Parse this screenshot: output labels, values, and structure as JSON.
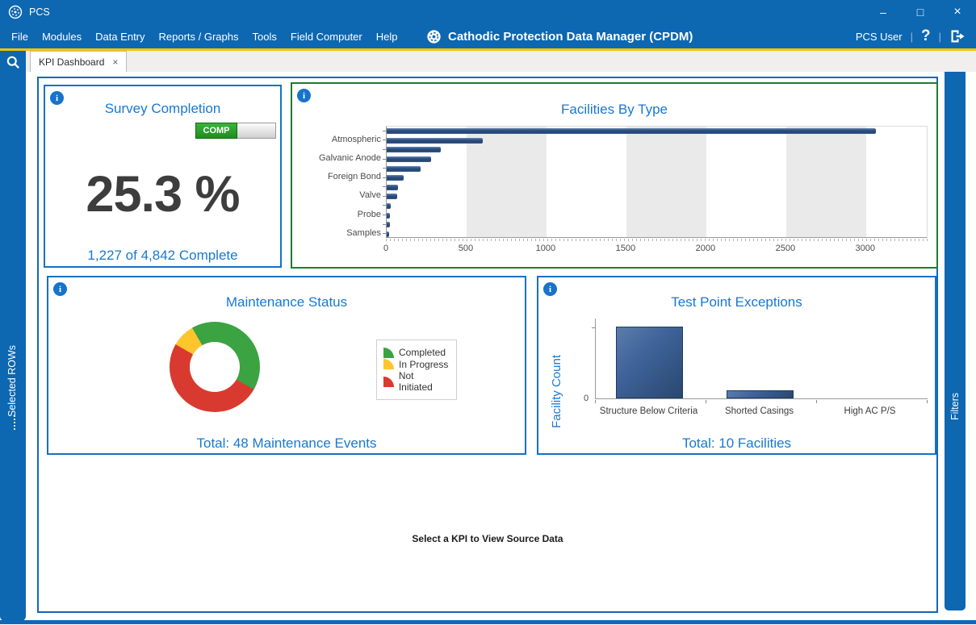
{
  "window": {
    "title": "PCS",
    "controls": [
      "–",
      "□",
      "×"
    ]
  },
  "menu_bar": {
    "items": [
      "File",
      "Modules",
      "Data Entry",
      "Reports / Graphs",
      "Tools",
      "Field Computer",
      "Help"
    ],
    "app_title": "Cathodic Protection Data Manager (CPDM)",
    "user": "PCS User",
    "help_label": "?"
  },
  "tabs": [
    {
      "label": "KPI Dashboard",
      "close_glyph": "×",
      "active": true
    }
  ],
  "left_sidebar": {
    "label": "Selected ROWs"
  },
  "right_sidebar": {
    "label": "Filters"
  },
  "kpi_survey": {
    "title": "Survey Completion",
    "badge_label": "COMP",
    "badge_fill_pct": 52,
    "value": "25.3 %",
    "subtitle": "1,227 of 4,842 Complete"
  },
  "kpi_facilities": {
    "title": "Facilities By Type",
    "chart_data": {
      "type": "bar",
      "orientation": "horizontal",
      "bars": [
        {
          "label": "",
          "value": 3060
        },
        {
          "label": "Atmospheric",
          "value": 600
        },
        {
          "label": "",
          "value": 340
        },
        {
          "label": "Galvanic Anode",
          "value": 280
        },
        {
          "label": "",
          "value": 210
        },
        {
          "label": "Foreign Bond",
          "value": 105
        },
        {
          "label": "",
          "value": 70
        },
        {
          "label": "Valve",
          "value": 68
        },
        {
          "label": "",
          "value": 25
        },
        {
          "label": "Probe",
          "value": 20
        },
        {
          "label": "",
          "value": 20
        },
        {
          "label": "Samples",
          "value": 15
        }
      ],
      "xticks": [
        0,
        500,
        1000,
        1500,
        2000,
        2500,
        3000
      ],
      "xlim": [
        0,
        3390
      ],
      "grid_bands": true,
      "legend": "none"
    }
  },
  "kpi_maintenance": {
    "title": "Maintenance Status",
    "total_label": "Total: 48 Maintenance Events",
    "legend": [
      {
        "label": "Completed",
        "color": "#3ba342"
      },
      {
        "label": "In Progress",
        "color": "#fec52d"
      },
      {
        "label": "Not Initiated",
        "color": "#d93a30"
      }
    ],
    "chart_data": {
      "type": "pie",
      "subtype": "donut",
      "total": 48,
      "start_angle_deg": -30,
      "slices": [
        {
          "label": "Completed",
          "value": 20,
          "color": "#3ba342"
        },
        {
          "label": "Not Initiated",
          "value": 24,
          "color": "#d93a30"
        },
        {
          "label": "In Progress",
          "value": 4,
          "color": "#fec52d"
        }
      ],
      "legend_position": "right"
    }
  },
  "kpi_testpoint": {
    "title": "Test Point Exceptions",
    "ylabel": "Facility Count",
    "total_label": "Total: 10 Facilities",
    "chart_data": {
      "type": "bar",
      "orientation": "vertical",
      "categories": [
        "Structure Below Criteria",
        "Shorted Casings",
        "High AC P/S"
      ],
      "values": [
        9,
        1,
        0
      ],
      "ylim": [
        0,
        10
      ],
      "yticks": [
        0
      ],
      "ylabel": "Facility Count"
    }
  },
  "source_panel": {
    "placeholder": "Select a KPI to View Source Data"
  },
  "colors": {
    "chrome_blue": "#0d67b1",
    "accent_blue": "#1878d2",
    "panel_border_blue": "#1671c4",
    "selected_border_green": "#1e7b31",
    "highlight_yellow": "#f2c400",
    "bar_blue": "#34598c",
    "completed_green": "#3ba342",
    "in_progress_yellow": "#fec52d",
    "not_initiated_red": "#d93a30",
    "progress_green": "#2ea12e"
  }
}
